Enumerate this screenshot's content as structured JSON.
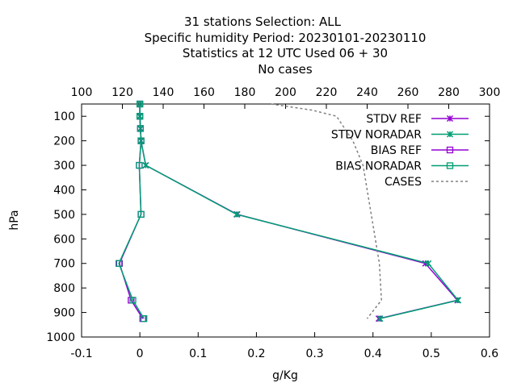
{
  "chart_data": {
    "type": "line",
    "title_lines": [
      "31 stations Selection: ALL",
      "Specific humidity  Period: 20230101-20230110",
      "Statistics at 12 UTC  Used  06 + 30",
      "No cases"
    ],
    "xlabel": "g/Kg",
    "ylabel": "hPa",
    "xlim": [
      -0.1,
      0.6
    ],
    "x_ticks": [
      "-0.1",
      "0",
      "0.1",
      "0.2",
      "0.3",
      "0.4",
      "0.5",
      "0.6"
    ],
    "x2lim": [
      100,
      300
    ],
    "x2_ticks": [
      "100",
      "120",
      "140",
      "160",
      "180",
      "200",
      "220",
      "240",
      "260",
      "280",
      "300"
    ],
    "ylim": [
      1000,
      50
    ],
    "y_ticks": [
      "100",
      "200",
      "300",
      "400",
      "500",
      "600",
      "700",
      "800",
      "900",
      "1000"
    ],
    "grid": false,
    "legend_position": "top-right",
    "series": [
      {
        "name": "STDV REF",
        "color": "#9400d3",
        "marker": "x",
        "axis": "x",
        "points": [
          [
            0.0,
            50
          ],
          [
            0.0,
            100
          ],
          [
            0.001,
            150
          ],
          [
            0.002,
            200
          ],
          [
            0.01,
            300
          ],
          [
            0.167,
            500
          ],
          [
            0.49,
            700
          ],
          [
            0.545,
            850
          ],
          [
            0.41,
            925
          ]
        ]
      },
      {
        "name": "STDV NORADAR",
        "color": "#009e73",
        "marker": "x",
        "axis": "x",
        "points": [
          [
            0.0,
            50
          ],
          [
            0.0,
            100
          ],
          [
            0.001,
            150
          ],
          [
            0.002,
            200
          ],
          [
            0.01,
            300
          ],
          [
            0.166,
            500
          ],
          [
            0.495,
            700
          ],
          [
            0.546,
            850
          ],
          [
            0.412,
            925
          ]
        ]
      },
      {
        "name": "BIAS REF",
        "color": "#9400d3",
        "marker": "square",
        "axis": "x",
        "points": [
          [
            0.0,
            50
          ],
          [
            0.0,
            100
          ],
          [
            0.001,
            150
          ],
          [
            0.002,
            200
          ],
          [
            -0.001,
            300
          ],
          [
            0.002,
            500
          ],
          [
            -0.035,
            700
          ],
          [
            -0.015,
            850
          ],
          [
            0.005,
            925
          ]
        ]
      },
      {
        "name": "BIAS NORADAR",
        "color": "#009e73",
        "marker": "square",
        "axis": "x",
        "points": [
          [
            0.0,
            50
          ],
          [
            0.0,
            100
          ],
          [
            0.001,
            150
          ],
          [
            0.002,
            200
          ],
          [
            -0.001,
            300
          ],
          [
            0.002,
            500
          ],
          [
            -0.036,
            700
          ],
          [
            -0.012,
            850
          ],
          [
            0.007,
            925
          ]
        ]
      },
      {
        "name": "CASES",
        "color": "#808080",
        "marker": "none",
        "dash": true,
        "axis": "x2",
        "points": [
          [
            193,
            50
          ],
          [
            213,
            75
          ],
          [
            225,
            100
          ],
          [
            233,
            200
          ],
          [
            238,
            300
          ],
          [
            242,
            500
          ],
          [
            246,
            700
          ],
          [
            247,
            850
          ],
          [
            240,
            925
          ]
        ]
      }
    ]
  }
}
